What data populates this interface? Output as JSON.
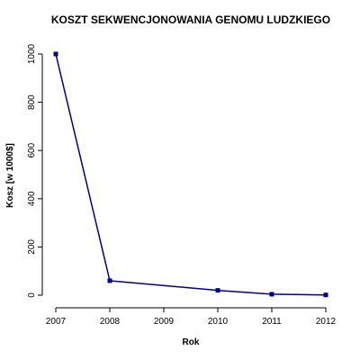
{
  "chart_data": {
    "type": "line",
    "title": "KOSZT SEKWENCJONOWANIA GENOMU LUDZKIEGO",
    "x_label": "Rok",
    "y_label": "Kosz [w 1000$]",
    "x": [
      2007,
      2008,
      2010,
      2011,
      2012
    ],
    "series": [
      {
        "name": null,
        "color": "#00008b",
        "values": [
          1000,
          60,
          20,
          4,
          1
        ]
      }
    ],
    "xlim": [
      2007,
      2012
    ],
    "xticks": [
      2007,
      2008,
      2009,
      2010,
      2011,
      2012
    ],
    "ylim": [
      0,
      1000
    ],
    "yticks": [
      0,
      200,
      400,
      600,
      800,
      1000
    ]
  }
}
